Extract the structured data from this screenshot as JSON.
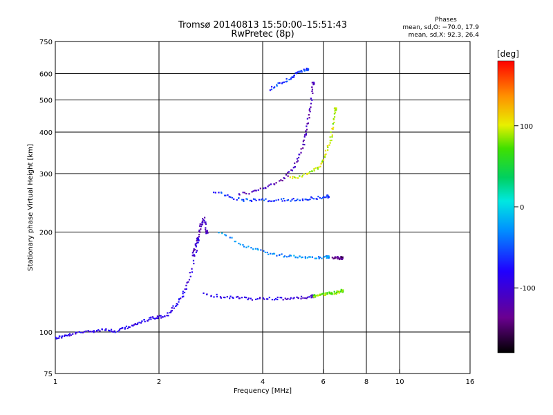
{
  "chart_data": {
    "type": "scatter",
    "title": "Tromsø 20140813 15:50:00–15:51:43",
    "subtitle": "RwPretec (8p)",
    "xlabel": "Frequency [MHz]",
    "ylabel": "Stationary phase Virtual Height [km]",
    "x_scale": "log",
    "y_scale": "log",
    "xlim": [
      1,
      16
    ],
    "ylim": [
      75,
      750
    ],
    "x_ticks": [
      1,
      2,
      4,
      6,
      8,
      10,
      16
    ],
    "y_ticks": [
      75,
      100,
      200,
      300,
      400,
      500,
      600,
      750
    ],
    "x_grid": [
      2,
      4,
      6,
      8,
      10
    ],
    "y_grid": [
      100,
      200,
      300,
      400,
      500,
      600
    ],
    "grid": true,
    "stats": {
      "heading": "Phases",
      "line_o": "mean, sd,O: −70.0, 17.9",
      "line_x": "mean, sd,X:  92.3, 26.4"
    },
    "colorbar": {
      "label": "[deg]",
      "range": [
        -180,
        180
      ],
      "ticks": [
        100,
        0,
        -100
      ],
      "colormap": "rainbow: black → purple → blue → cyan → green → yellow → orange → red"
    },
    "traces": [
      {
        "name_hint": "sporadic low echoes",
        "freq": [
          1.0,
          1.05,
          1.1,
          1.2,
          1.3,
          1.4,
          1.5,
          1.6,
          1.7,
          1.8,
          1.9,
          2.0,
          2.1,
          2.2,
          2.3,
          2.4,
          2.5,
          2.6
        ],
        "height": [
          96,
          97,
          98,
          100,
          101,
          102,
          100,
          103,
          105,
          108,
          110,
          111,
          112,
          118,
          125,
          135,
          155,
          190
        ],
        "phase": -90
      },
      {
        "name_hint": "E-like cusp",
        "freq": [
          2.5,
          2.55,
          2.6,
          2.65,
          2.7,
          2.75
        ],
        "height": [
          170,
          180,
          195,
          210,
          220,
          200
        ],
        "phase": -110
      },
      {
        "name_hint": "lower trace O",
        "freq": [
          2.7,
          3.0,
          3.3,
          3.6,
          4.0,
          4.4,
          4.8,
          5.2,
          5.6
        ],
        "height": [
          130,
          128,
          127,
          126,
          126,
          126,
          126,
          127,
          128
        ],
        "phase": -95
      },
      {
        "name_hint": "lower trace X",
        "freq": [
          5.6,
          5.8,
          6.0,
          6.2,
          6.4,
          6.6,
          6.8
        ],
        "height": [
          128,
          129,
          130,
          131,
          131,
          132,
          133
        ],
        "phase": 80
      },
      {
        "name_hint": "middle trace",
        "freq": [
          3.0,
          3.4,
          3.8,
          4.2,
          4.6,
          5.0,
          5.4,
          5.8,
          6.2
        ],
        "height": [
          200,
          185,
          178,
          172,
          170,
          169,
          168,
          168,
          168
        ],
        "phase": -30
      },
      {
        "name_hint": "middle trace tail",
        "freq": [
          6.4,
          6.6,
          6.8
        ],
        "height": [
          167,
          167,
          167
        ],
        "phase": -140
      },
      {
        "name_hint": "F trace base",
        "freq": [
          2.9,
          3.2,
          3.5,
          3.8,
          4.2,
          4.6,
          5.0,
          5.4,
          5.8,
          6.2
        ],
        "height": [
          265,
          255,
          250,
          250,
          250,
          250,
          250,
          252,
          254,
          256
        ],
        "phase": -60
      },
      {
        "name_hint": "F trace upper",
        "freq": [
          3.4,
          3.8,
          4.2,
          4.6,
          4.9,
          5.1,
          5.3,
          5.4,
          5.5,
          5.6
        ],
        "height": [
          260,
          265,
          275,
          290,
          310,
          340,
          380,
          420,
          480,
          560
        ],
        "phase": -115
      },
      {
        "name_hint": "F trace X branch",
        "freq": [
          4.8,
          5.2,
          5.6,
          5.9,
          6.1,
          6.3,
          6.4,
          6.5
        ],
        "height": [
          290,
          295,
          305,
          320,
          345,
          380,
          420,
          470
        ],
        "phase": 95
      },
      {
        "name_hint": "high echoes",
        "freq": [
          4.2,
          4.5,
          4.8,
          5.0,
          5.2,
          5.4
        ],
        "height": [
          540,
          560,
          580,
          600,
          610,
          620
        ],
        "phase": -60
      }
    ]
  }
}
